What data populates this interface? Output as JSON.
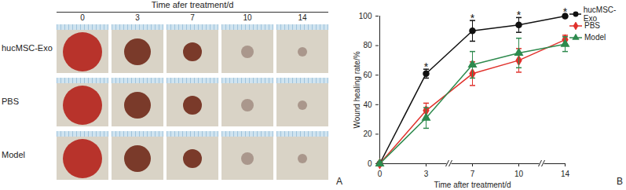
{
  "panel_a": {
    "label": "A",
    "header": "Time afer treatment/d",
    "columns": [
      "0",
      "3",
      "7",
      "10",
      "14"
    ],
    "rows": [
      "hucMSC-Exo",
      "PBS",
      "Model"
    ]
  },
  "chart_data": {
    "type": "line",
    "panel_label": "B",
    "x_label": "Time after treatment/d",
    "y_label": "Wound healing rate/%",
    "categories": [
      "0",
      "3",
      "7",
      "10",
      "14"
    ],
    "ylim": [
      0,
      100
    ],
    "yticks": [
      0,
      20,
      40,
      60,
      80,
      100
    ],
    "legend": "right",
    "series": [
      {
        "name": "hucMSC-Exo",
        "color": "#111111",
        "marker": "circle",
        "values": [
          0,
          61,
          90,
          94,
          100
        ],
        "errors": [
          0,
          3,
          7,
          5,
          1
        ],
        "significance": {
          "x": [
            "3",
            "7",
            "10",
            "14"
          ],
          "label": "*"
        }
      },
      {
        "name": "PBS",
        "color": "#e0312b",
        "marker": "diamond",
        "values": [
          0,
          36,
          61,
          70,
          84
        ],
        "errors": [
          0,
          5,
          8,
          8,
          3
        ]
      },
      {
        "name": "Model",
        "color": "#2e8a4e",
        "marker": "triangle",
        "values": [
          0,
          31,
          67,
          75,
          81
        ],
        "errors": [
          0,
          7,
          9,
          10,
          5
        ]
      }
    ]
  }
}
